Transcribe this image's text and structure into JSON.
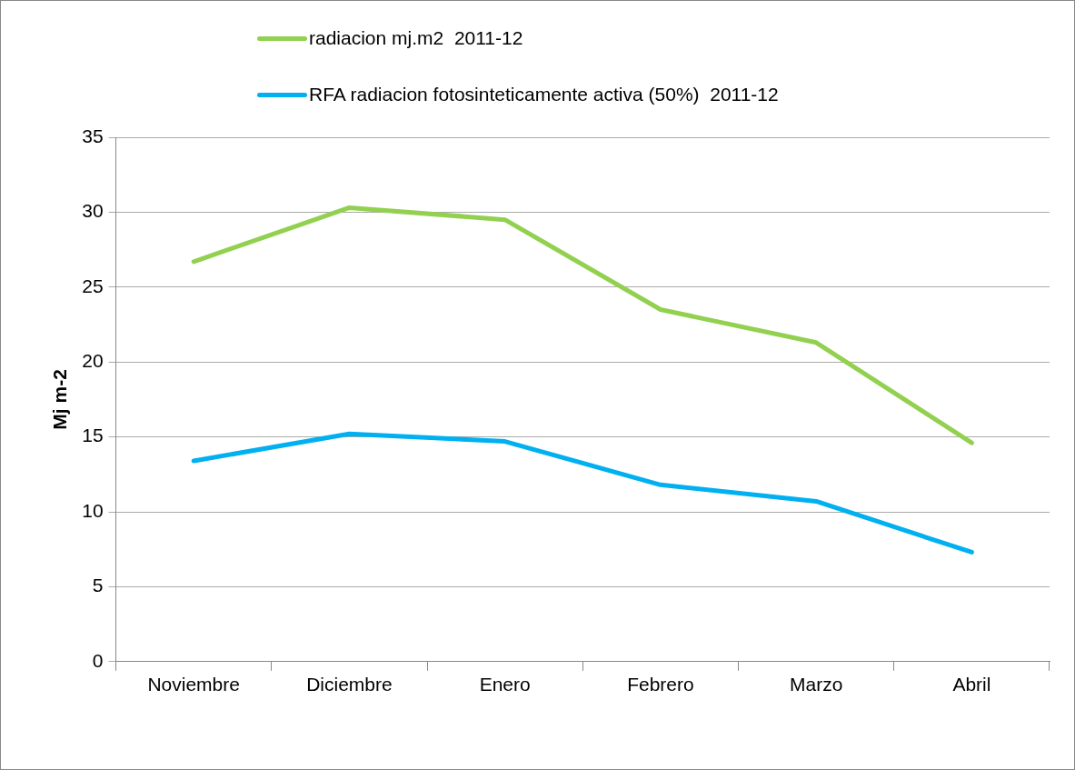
{
  "chart_data": {
    "type": "line",
    "ylabel": "Mj m-2",
    "categories": [
      "Noviembre",
      "Diciembre",
      "Enero",
      "Febrero",
      "Marzo",
      "Abril"
    ],
    "series": [
      {
        "name": "radiacion mj.m2  2011-12",
        "color": "#92d050",
        "values": [
          26.7,
          30.3,
          29.5,
          23.5,
          21.3,
          14.6
        ]
      },
      {
        "name": "RFA radiacion fotosinteticamente activa (50%)  2011-12",
        "color": "#00b0f0",
        "values": [
          13.4,
          15.2,
          14.7,
          11.8,
          10.7,
          7.3
        ]
      }
    ],
    "ylim": [
      0,
      35
    ],
    "yticks": [
      0,
      5,
      10,
      15,
      20,
      25,
      30,
      35
    ],
    "grid": "y",
    "legend": "top",
    "marker": "none",
    "line_style": "solid"
  }
}
